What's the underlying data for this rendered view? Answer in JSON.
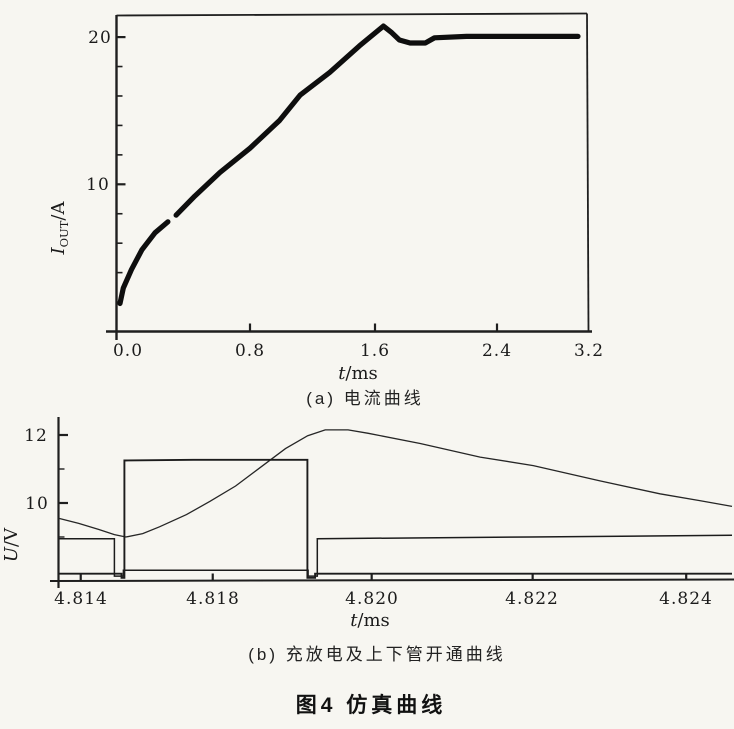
{
  "figure": {
    "title": "图4  仿真曲线",
    "caption_a": "(a) 电流曲线",
    "caption_b": "(b) 充放电及上下管开通曲线"
  },
  "chart_data": [
    {
      "type": "line",
      "name": "output-current-curve",
      "caption": "(a) 电流曲线",
      "xlabel": "t/ms",
      "xlabel_var": "t",
      "xlabel_rest": "/ms",
      "ylabel": "IOUT/A",
      "ylabel_var": "I",
      "ylabel_sub": "OUT",
      "ylabel_rest": "/A",
      "xlim": [
        0,
        3.2
      ],
      "ylim": [
        0,
        21.5
      ],
      "grid": false,
      "legend": "none",
      "x_ticks": [
        {
          "t": 0.0,
          "label": "0.0",
          "tick": false
        },
        {
          "t": 0.8,
          "label": "0.8",
          "tick": true
        },
        {
          "t": 1.6,
          "label": "1.6",
          "tick": true
        },
        {
          "t": 2.4,
          "label": "2.4",
          "tick": true
        },
        {
          "t": 3.2,
          "label": "3.2",
          "tick": false
        }
      ],
      "y_ticks": [
        {
          "v": 10,
          "label": "10"
        },
        {
          "v": 20,
          "label": "20"
        }
      ],
      "series": [
        {
          "name": "output-current",
          "color": "#0e0e0e",
          "segments": [
            [
              [
                0.0,
                1.9
              ],
              [
                0.02,
                2.95
              ],
              [
                0.07,
                4.2
              ],
              [
                0.135,
                5.55
              ],
              [
                0.215,
                6.7
              ],
              [
                0.295,
                7.45
              ]
            ],
            [
              [
                0.345,
                7.9
              ],
              [
                0.46,
                9.2
              ],
              [
                0.615,
                10.8
              ],
              [
                0.8,
                12.45
              ],
              [
                0.99,
                14.35
              ],
              [
                1.12,
                16.05
              ],
              [
                1.31,
                17.6
              ],
              [
                1.5,
                19.4
              ],
              [
                1.655,
                20.75
              ],
              [
                1.71,
                20.3
              ],
              [
                1.76,
                19.8
              ],
              [
                1.83,
                19.6
              ],
              [
                1.93,
                19.6
              ],
              [
                1.99,
                19.95
              ],
              [
                2.2,
                20.05
              ],
              [
                2.6,
                20.05
              ],
              [
                3.12,
                20.05
              ]
            ]
          ]
        }
      ]
    },
    {
      "type": "line",
      "name": "charge-discharge-and-gate-curves",
      "caption": "(b) 充放电及上下管开通曲线",
      "xlabel": "t/ms",
      "xlabel_var": "t",
      "xlabel_rest": "/ms",
      "ylabel": "U/V",
      "ylabel_var": "U",
      "ylabel_rest": "/V",
      "ylim": [
        7.7,
        12.5
      ],
      "grid": false,
      "legend": "none",
      "x_ticks": [
        {
          "u": 0.033,
          "label": "4.814",
          "tick": true
        },
        {
          "u": 0.229,
          "label": "4.818",
          "tick": true
        },
        {
          "u": 0.465,
          "label": "4.820",
          "tick": true
        },
        {
          "u": 0.704,
          "label": "4.822",
          "tick": true
        },
        {
          "u": 0.932,
          "label": "4.824",
          "tick": true
        }
      ],
      "y_ticks": [
        {
          "v": 10,
          "label": "10"
        },
        {
          "v": 12,
          "label": "12"
        }
      ],
      "series": [
        {
          "name": "capacitor-charge-discharge-voltage",
          "color": "#262626",
          "segments": [
            [
              [
                0,
                9.55
              ],
              [
                0.03,
                9.4
              ],
              [
                0.06,
                9.22
              ],
              [
                0.083,
                9.07
              ],
              [
                0.1,
                9.0
              ],
              [
                0.125,
                9.1
              ],
              [
                0.15,
                9.3
              ],
              [
                0.19,
                9.66
              ],
              [
                0.225,
                10.05
              ],
              [
                0.263,
                10.5
              ],
              [
                0.3,
                11.05
              ],
              [
                0.337,
                11.6
              ],
              [
                0.37,
                11.98
              ],
              [
                0.396,
                12.15
              ],
              [
                0.43,
                12.15
              ],
              [
                0.46,
                12.05
              ],
              [
                0.537,
                11.75
              ],
              [
                0.626,
                11.35
              ],
              [
                0.705,
                11.1
              ],
              [
                0.804,
                10.65
              ],
              [
                0.893,
                10.27
              ],
              [
                0.952,
                10.07
              ],
              [
                1,
                9.9
              ]
            ]
          ]
        },
        {
          "name": "upper-switch-gate-voltage",
          "color": "#1c1c1c",
          "segments": [
            [
              [
                0,
                8.95
              ],
              [
                0.083,
                8.95
              ],
              [
                0.083,
                7.85
              ],
              [
                0.0964,
                7.85
              ],
              [
                0.0964,
                8.02
              ],
              [
                0.3706,
                8.02
              ],
              [
                0.3706,
                7.85
              ],
              [
                0.3843,
                7.85
              ],
              [
                0.3843,
                8.95
              ],
              [
                0.7,
                9.0
              ],
              [
                1,
                9.05
              ]
            ]
          ]
        },
        {
          "name": "lower-switch-gate-voltage",
          "color": "#1c1c1c",
          "segments": [
            [
              [
                0,
                7.92
              ],
              [
                0.0935,
                7.92
              ],
              [
                0.0935,
                7.8
              ],
              [
                0.0979,
                7.8
              ],
              [
                0.0979,
                11.25
              ],
              [
                0.2,
                11.27
              ],
              [
                0.3695,
                11.27
              ],
              [
                0.3695,
                7.8
              ],
              [
                0.381,
                7.8
              ],
              [
                0.381,
                7.92
              ],
              [
                1,
                7.92
              ]
            ]
          ]
        }
      ]
    }
  ]
}
